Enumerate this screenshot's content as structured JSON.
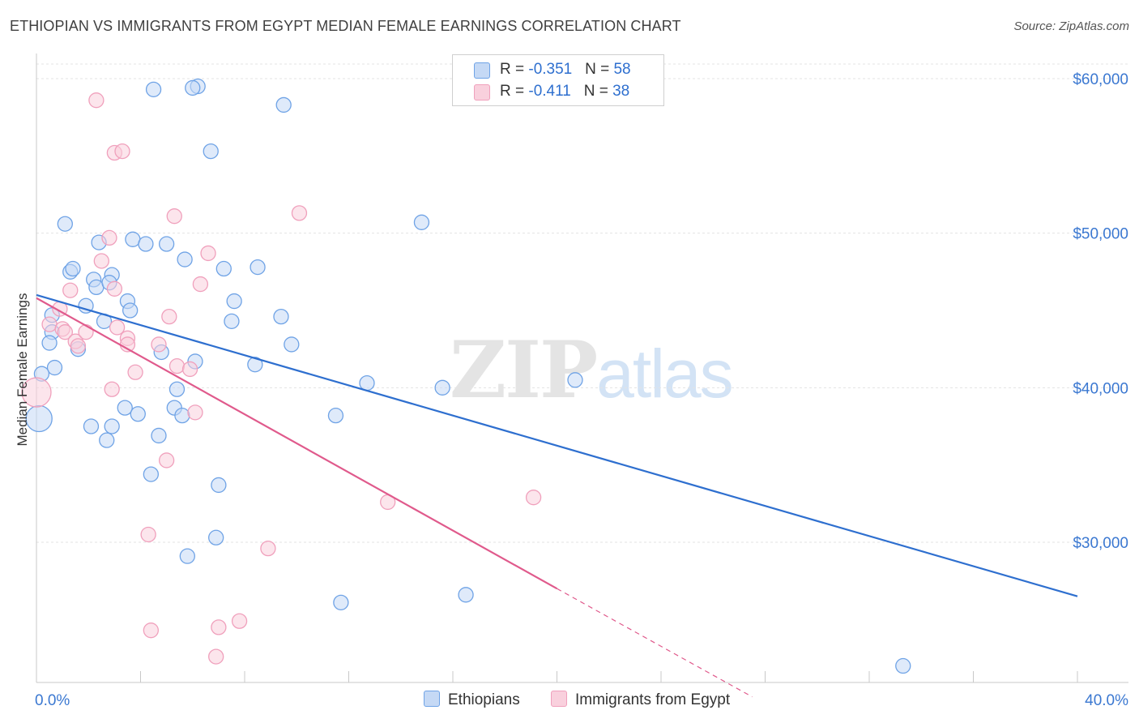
{
  "header": {
    "title": "ETHIOPIAN VS IMMIGRANTS FROM EGYPT MEDIAN FEMALE EARNINGS CORRELATION CHART",
    "source": "Source: ZipAtlas.com"
  },
  "watermark": {
    "zip": "ZIP",
    "atlas": "atlas"
  },
  "legend": {
    "rows": [
      {
        "r_label": "R = ",
        "r_value": "-0.351",
        "n_label": "N = ",
        "n_value": "58"
      },
      {
        "r_label": "R = ",
        "r_value": "-0.411",
        "n_label": "N = ",
        "n_value": "38"
      }
    ]
  },
  "chart_data": {
    "type": "scatter",
    "title": "ETHIOPIAN VS IMMIGRANTS FROM EGYPT MEDIAN FEMALE EARNINGS CORRELATION CHART",
    "xlabel": "",
    "ylabel": "Median Female Earnings",
    "xlim": [
      0,
      40
    ],
    "ylim": [
      20000,
      61000
    ],
    "x_tick_labels": [
      "0.0%",
      "40.0%"
    ],
    "y_ticks": [
      30000,
      40000,
      50000,
      60000
    ],
    "y_tick_labels": [
      "$30,000",
      "$40,000",
      "$50,000",
      "$60,000"
    ],
    "grid": true,
    "legend_position": "top-center",
    "series": [
      {
        "name": "Ethiopians",
        "color": "#6fa3e6",
        "fill": "#c5d9f5",
        "line_color": "#2e6fcf",
        "trend": {
          "x": [
            0,
            40
          ],
          "y": [
            46000,
            26500
          ]
        },
        "points": [
          [
            4.5,
            59300
          ],
          [
            6.2,
            59500
          ],
          [
            6.0,
            59400
          ],
          [
            9.5,
            58300
          ],
          [
            6.7,
            55300
          ],
          [
            1.1,
            50600
          ],
          [
            2.4,
            49400
          ],
          [
            3.7,
            49600
          ],
          [
            4.2,
            49300
          ],
          [
            5.0,
            49300
          ],
          [
            14.8,
            50700
          ],
          [
            5.7,
            48300
          ],
          [
            1.3,
            47500
          ],
          [
            1.4,
            47700
          ],
          [
            2.2,
            47000
          ],
          [
            2.9,
            47300
          ],
          [
            7.2,
            47700
          ],
          [
            8.5,
            47800
          ],
          [
            2.3,
            46500
          ],
          [
            3.5,
            45600
          ],
          [
            1.9,
            45300
          ],
          [
            3.6,
            45000
          ],
          [
            0.6,
            44700
          ],
          [
            7.6,
            45600
          ],
          [
            2.6,
            44300
          ],
          [
            7.5,
            44300
          ],
          [
            9.4,
            44600
          ],
          [
            0.6,
            43600
          ],
          [
            0.5,
            42900
          ],
          [
            1.6,
            42500
          ],
          [
            4.8,
            42300
          ],
          [
            9.8,
            42800
          ],
          [
            0.7,
            41300
          ],
          [
            0.2,
            40900
          ],
          [
            6.1,
            41700
          ],
          [
            8.4,
            41500
          ],
          [
            12.7,
            40300
          ],
          [
            15.6,
            40000
          ],
          [
            20.7,
            40500
          ],
          [
            5.4,
            39900
          ],
          [
            3.4,
            38700
          ],
          [
            5.3,
            38700
          ],
          [
            3.9,
            38300
          ],
          [
            5.6,
            38200
          ],
          [
            11.5,
            38200
          ],
          [
            0.1,
            38000
          ],
          [
            2.1,
            37500
          ],
          [
            2.9,
            37500
          ],
          [
            4.7,
            36900
          ],
          [
            2.7,
            36600
          ],
          [
            4.4,
            34400
          ],
          [
            7.0,
            33700
          ],
          [
            6.9,
            30300
          ],
          [
            5.8,
            29100
          ],
          [
            11.7,
            26100
          ],
          [
            16.5,
            26600
          ],
          [
            33.3,
            22000
          ],
          [
            2.8,
            46800
          ]
        ],
        "point_sizes": {
          "45": 16
        }
      },
      {
        "name": "Immigrants from Egypt",
        "color": "#f0a0bc",
        "fill": "#f9d0dd",
        "line_color": "#e05a8c",
        "trend": {
          "x": [
            0,
            20
          ],
          "y": [
            45800,
            27000
          ]
        },
        "trend_dashed": {
          "x": [
            20,
            27.5
          ],
          "y": [
            27000,
            20000
          ]
        },
        "points": [
          [
            2.3,
            58600
          ],
          [
            3.0,
            55200
          ],
          [
            3.3,
            55300
          ],
          [
            5.3,
            51100
          ],
          [
            10.1,
            51300
          ],
          [
            2.8,
            49700
          ],
          [
            6.6,
            48700
          ],
          [
            2.5,
            48200
          ],
          [
            3.0,
            46400
          ],
          [
            6.3,
            46700
          ],
          [
            1.3,
            46300
          ],
          [
            0.9,
            45100
          ],
          [
            5.1,
            44600
          ],
          [
            0.5,
            44100
          ],
          [
            1.0,
            43800
          ],
          [
            1.1,
            43600
          ],
          [
            3.1,
            43900
          ],
          [
            1.5,
            43000
          ],
          [
            3.5,
            43200
          ],
          [
            1.6,
            42700
          ],
          [
            3.5,
            42800
          ],
          [
            4.7,
            42800
          ],
          [
            5.4,
            41400
          ],
          [
            5.9,
            41200
          ],
          [
            3.8,
            41000
          ],
          [
            0.0,
            39700
          ],
          [
            2.9,
            39900
          ],
          [
            6.1,
            38400
          ],
          [
            5.0,
            35300
          ],
          [
            13.5,
            32600
          ],
          [
            19.1,
            32900
          ],
          [
            4.3,
            30500
          ],
          [
            8.9,
            29600
          ],
          [
            4.4,
            24300
          ],
          [
            7.0,
            24500
          ],
          [
            7.8,
            24900
          ],
          [
            6.9,
            22600
          ],
          [
            1.9,
            43600
          ]
        ],
        "point_sizes": {
          "25": 18
        }
      }
    ]
  },
  "bottom_legend": {
    "items": [
      {
        "label": "Ethiopians"
      },
      {
        "label": "Immigrants from Egypt"
      }
    ]
  }
}
